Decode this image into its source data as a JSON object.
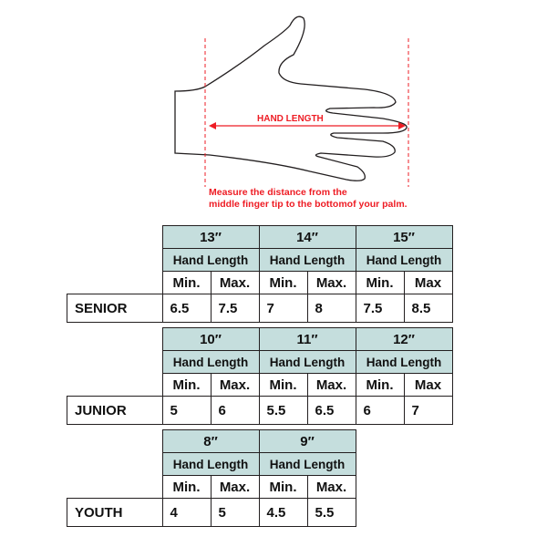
{
  "diagram": {
    "measure_label": "HAND LENGTH",
    "note_line1": "Measure the distance from the",
    "note_line2": "middle finger tip to the bottomof your palm.",
    "accent_color": "#ee1c24",
    "header_color": "#c5dedd"
  },
  "groups": [
    {
      "label": "SENIOR",
      "sizes": [
        {
          "size": "13″",
          "sub": "Hand Length",
          "min_label": "Min.",
          "max_label": "Max.",
          "min": "6.5",
          "max": "7.5"
        },
        {
          "size": "14″",
          "sub": "Hand Length",
          "min_label": "Min.",
          "max_label": "Max.",
          "min": "7",
          "max": "8"
        },
        {
          "size": "15″",
          "sub": "Hand Length",
          "min_label": "Min.",
          "max_label": "Max",
          "min": "7.5",
          "max": "8.5"
        }
      ]
    },
    {
      "label": "JUNIOR",
      "sizes": [
        {
          "size": "10″",
          "sub": "Hand Length",
          "min_label": "Min.",
          "max_label": "Max.",
          "min": "5",
          "max": "6"
        },
        {
          "size": "11″",
          "sub": "Hand Length",
          "min_label": "Min.",
          "max_label": "Max.",
          "min": "5.5",
          "max": "6.5"
        },
        {
          "size": "12″",
          "sub": "Hand Length",
          "min_label": "Min.",
          "max_label": "Max",
          "min": "6",
          "max": "7"
        }
      ]
    },
    {
      "label": "YOUTH",
      "sizes": [
        {
          "size": "8″",
          "sub": "Hand Length",
          "min_label": "Min.",
          "max_label": "Max.",
          "min": "4",
          "max": "5"
        },
        {
          "size": "9″",
          "sub": "Hand Length",
          "min_label": "Min.",
          "max_label": "Max.",
          "min": "4.5",
          "max": "5.5"
        }
      ]
    }
  ]
}
